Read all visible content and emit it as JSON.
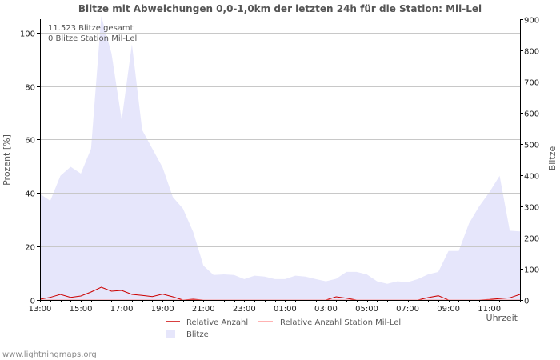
{
  "chart_data": {
    "type": "area",
    "title": "Blitze mit Abweichungen 0,0-1,0km der letzten 24h für die Station: Mil-Lel",
    "xlabel": "Uhrzeit",
    "ylabel_left": "Prozent   [%]",
    "ylabel_right": "Blitze",
    "y_left_lim": [
      0,
      105
    ],
    "y_right_lim": [
      0,
      900
    ],
    "y_left_ticks": [
      "0",
      "20",
      "40",
      "60",
      "80",
      "100"
    ],
    "y_right_ticks": [
      "0",
      "100",
      "200",
      "300",
      "400",
      "500",
      "600",
      "700",
      "800",
      "900"
    ],
    "x_labels": [
      "13:00",
      "15:00",
      "17:00",
      "19:00",
      "21:00",
      "23:00",
      "01:00",
      "03:00",
      "05:00",
      "07:00",
      "09:00",
      "11:00"
    ],
    "x_label_index": [
      0,
      4,
      8,
      12,
      16,
      20,
      24,
      28,
      32,
      36,
      40,
      44
    ],
    "n_points": 48,
    "annotations": [
      "11.523 Blitze gesamt",
      "0 Blitze Station Mil-Lel"
    ],
    "grid": true,
    "series": [
      {
        "name": "Blitze",
        "axis": "right",
        "color": "#e6e6fb",
        "values": [
          340,
          318,
          398,
          427,
          405,
          485,
          910,
          790,
          577,
          820,
          545,
          485,
          425,
          330,
          293,
          218,
          110,
          80,
          82,
          80,
          67,
          78,
          75,
          67,
          67,
          78,
          75,
          67,
          60,
          68,
          90,
          90,
          82,
          60,
          52,
          60,
          57,
          67,
          82,
          90,
          157,
          157,
          245,
          300,
          345,
          398,
          222,
          220
        ]
      },
      {
        "name": "Relative Anzahl",
        "axis": "left",
        "color": "#cc0000",
        "values": [
          0.3,
          1.0,
          2.1,
          1.0,
          1.5,
          3.0,
          4.8,
          3.3,
          3.6,
          2.1,
          1.7,
          1.3,
          2.2,
          1.2,
          0,
          0.3,
          0,
          0,
          0,
          0,
          0,
          0,
          0,
          0,
          0,
          0,
          0,
          0,
          0,
          1.2,
          0.7,
          0,
          0,
          0,
          0,
          0,
          0,
          0,
          0.9,
          1.6,
          0,
          0,
          0,
          0,
          0.2,
          0.5,
          0.8,
          2.1
        ]
      },
      {
        "name": "Relative Anzahl Station Mil-Lel",
        "axis": "left",
        "color": "#ff9999",
        "values": [
          0,
          0,
          0,
          0,
          0,
          0,
          0,
          0,
          0,
          0,
          0,
          0,
          0,
          0,
          0,
          0,
          0,
          0,
          0,
          0,
          0,
          0,
          0,
          0,
          0,
          0,
          0,
          0,
          0,
          0,
          0,
          0,
          0,
          0,
          0,
          0,
          0,
          0,
          0,
          0,
          0,
          0,
          0,
          0,
          0,
          0,
          0,
          0
        ]
      }
    ],
    "legend": [
      {
        "label": "Relative Anzahl",
        "color": "#cc0000",
        "kind": "line"
      },
      {
        "label": "Relative Anzahl Station Mil-Lel",
        "color": "#ff9999",
        "kind": "line"
      },
      {
        "label": "Blitze",
        "color": "#e6e6fb",
        "kind": "box"
      }
    ],
    "footer": "www.lightningmaps.org"
  }
}
